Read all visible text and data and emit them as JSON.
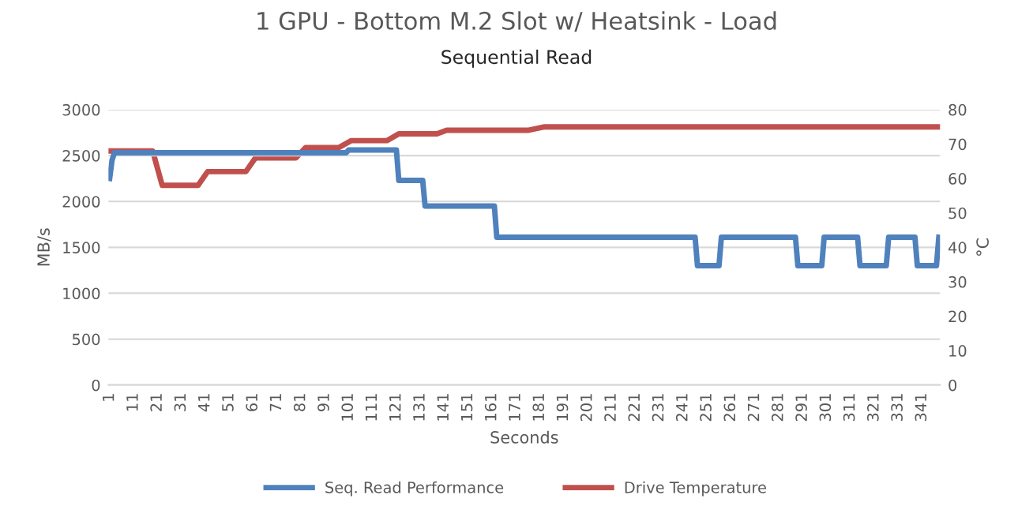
{
  "chart_data": {
    "type": "line",
    "title": "1 GPU - Bottom M.2 Slot w/ Heatsink - Load",
    "subtitle": "Sequential Read",
    "xlabel": "Seconds",
    "ylabel": "MB/s",
    "y2label": "°C",
    "xlim": [
      0.5,
      348.5
    ],
    "xticks": [
      1,
      11,
      21,
      31,
      41,
      51,
      61,
      71,
      81,
      91,
      101,
      111,
      121,
      131,
      141,
      151,
      161,
      171,
      181,
      191,
      201,
      211,
      221,
      231,
      241,
      251,
      261,
      271,
      281,
      291,
      301,
      311,
      321,
      331,
      341
    ],
    "ylim": [
      0,
      3000
    ],
    "yticks": [
      0,
      500,
      1000,
      1500,
      2000,
      2500,
      3000
    ],
    "y2lim": [
      0,
      80
    ],
    "y2ticks": [
      0,
      10,
      20,
      30,
      40,
      50,
      60,
      70,
      80
    ],
    "grid": "y",
    "legend": "bottom",
    "line_style": "solid",
    "marker": "none",
    "series": [
      {
        "name": "Seq. Read Performance",
        "color": "#4f81bd",
        "x": [
          1,
          2,
          3,
          100,
          101,
          121,
          122,
          132,
          133,
          162,
          163,
          246,
          247,
          256,
          257,
          288,
          289,
          299,
          300,
          314,
          315,
          326,
          327,
          338,
          339,
          347,
          348
        ],
        "values": [
          2250,
          2450,
          2530,
          2530,
          2560,
          2560,
          2230,
          2230,
          1950,
          1950,
          1610,
          1610,
          1300,
          1300,
          1610,
          1610,
          1300,
          1300,
          1610,
          1610,
          1300,
          1300,
          1610,
          1610,
          1300,
          1300,
          1610
        ]
      },
      {
        "name": "Drive Temperature",
        "color": "#c0504d",
        "axis": "y2",
        "x": [
          1,
          19,
          23,
          38,
          42,
          58,
          62,
          79,
          83,
          97,
          102,
          117,
          122,
          138,
          142,
          176,
          183,
          348
        ],
        "values": [
          68,
          68,
          58,
          58,
          62,
          62,
          66,
          66,
          69,
          69,
          71,
          71,
          73,
          73,
          74,
          74,
          75,
          75
        ]
      }
    ]
  }
}
